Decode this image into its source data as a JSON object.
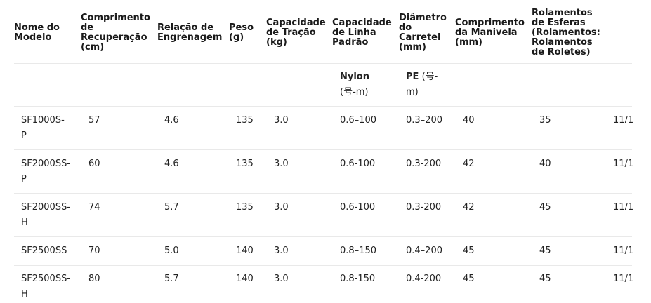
{
  "headers": [
    [
      "Nome do",
      "Modelo"
    ],
    [
      "Comprimento",
      "de",
      "Recuperação",
      "(cm)"
    ],
    [
      "Relação de",
      "Engrenagem"
    ],
    [
      "Peso",
      "(g)"
    ],
    [
      "Capacidade",
      "de Tração",
      "(kg)"
    ],
    [
      "Capacidade",
      "de Linha",
      "Padrão"
    ],
    [
      "Diâmetro",
      "do",
      "Carretel",
      "(mm)"
    ],
    [
      "Comprimento",
      "da Manivela",
      "(mm)"
    ],
    [
      "Rolamentos",
      "de Esferas",
      "(Rolamentos:",
      "Rolamentos",
      "de Roletes)"
    ]
  ],
  "subheader": {
    "nylon_label": "Nylon",
    "nylon_unit": "(号-m)",
    "pe_label": "PE",
    "pe_unit_a": "(号-",
    "pe_unit_b": "m)"
  },
  "rows": [
    {
      "model_a": "SF1000S-",
      "model_b": "P",
      "recovery": "57",
      "gear": "4.6",
      "weight": "135",
      "drag": "3.0",
      "nylon": "0.6–100",
      "pe": "0.3–200",
      "spool": "40",
      "handle": "35",
      "bearings": "11/1"
    },
    {
      "model_a": "SF2000SS-",
      "model_b": "P",
      "recovery": "60",
      "gear": "4.6",
      "weight": "135",
      "drag": "3.0",
      "nylon": "0.6-100",
      "pe": "0.3-200",
      "spool": "42",
      "handle": "40",
      "bearings": "11/1"
    },
    {
      "model_a": "SF2000SS-",
      "model_b": "H",
      "recovery": "74",
      "gear": "5.7",
      "weight": "135",
      "drag": "3.0",
      "nylon": "0.6-100",
      "pe": "0.3-200",
      "spool": "42",
      "handle": "45",
      "bearings": "11/1"
    },
    {
      "model_a": "SF2500SS",
      "model_b": "",
      "recovery": "70",
      "gear": "5.0",
      "weight": "140",
      "drag": "3.0",
      "nylon": "0.8–150",
      "pe": "0.4–200",
      "spool": "45",
      "handle": "45",
      "bearings": "11/1"
    },
    {
      "model_a": "SF2500SS-",
      "model_b": "H",
      "recovery": "80",
      "gear": "5.7",
      "weight": "140",
      "drag": "3.0",
      "nylon": "0.8-150",
      "pe": "0.4-200",
      "spool": "45",
      "handle": "45",
      "bearings": "11/1"
    }
  ]
}
